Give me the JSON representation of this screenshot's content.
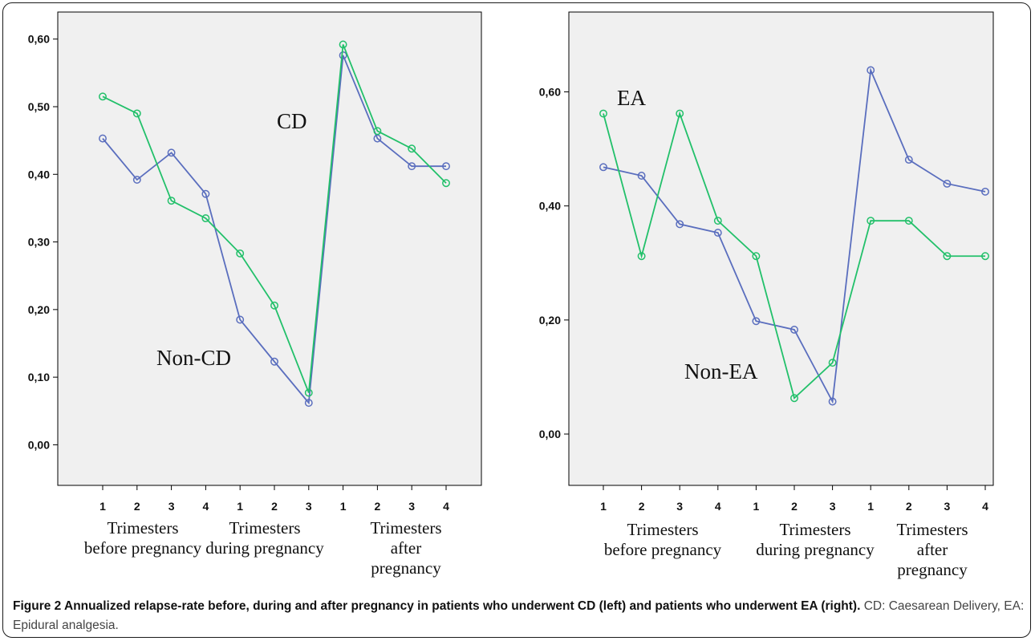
{
  "chart_data": [
    {
      "type": "line",
      "ylim": [
        -0.06,
        0.64
      ],
      "yticks": [
        0.0,
        0.1,
        0.2,
        0.3,
        0.4,
        0.5,
        0.6
      ],
      "ytick_labels": [
        "0,00",
        "0,10",
        "0,20",
        "0,30",
        "0,40",
        "0,50",
        "0,60"
      ],
      "categories": [
        "1",
        "2",
        "3",
        "4",
        "1",
        "2",
        "3",
        "1",
        "2",
        "3",
        "4"
      ],
      "x_groups": [
        {
          "lines": [
            "Trimesters",
            "before pregnancy"
          ]
        },
        {
          "lines": [
            "Trimesters",
            "during pregnancy"
          ]
        },
        {
          "lines": [
            "Trimesters",
            "after",
            "pregnancy"
          ]
        }
      ],
      "annotations": [
        {
          "text": "CD",
          "x": 5.5,
          "y": 0.49
        },
        {
          "text": "Non-CD",
          "x": 2.5,
          "y": 0.15
        }
      ],
      "series": [
        {
          "color": "#5a6ebe",
          "values": [
            0.453,
            0.392,
            0.432,
            0.371,
            0.185,
            0.123,
            0.062,
            0.576,
            0.453,
            0.412,
            0.412
          ]
        },
        {
          "color": "#22c06a",
          "values": [
            0.515,
            0.49,
            0.361,
            0.335,
            0.283,
            0.206,
            0.077,
            0.592,
            0.464,
            0.438,
            0.387
          ]
        }
      ]
    },
    {
      "type": "line",
      "ylim": [
        -0.09,
        0.74
      ],
      "yticks": [
        0.0,
        0.2,
        0.4,
        0.6
      ],
      "ytick_labels": [
        "0,00",
        "0,20",
        "0,40",
        "0,60"
      ],
      "categories": [
        "1",
        "2",
        "3",
        "4",
        "1",
        "2",
        "3",
        "1",
        "2",
        "3",
        "4"
      ],
      "x_groups": [
        {
          "lines": [
            "Trimesters",
            "before pregnancy"
          ]
        },
        {
          "lines": [
            "Trimesters",
            "during pregnancy"
          ]
        },
        {
          "lines": [
            "Trimesters",
            "after",
            "pregnancy"
          ]
        }
      ],
      "annotations": [
        {
          "text": "EA",
          "x": 5.5,
          "y": 0.6
        },
        {
          "text": "Non-EA",
          "x": 2.5,
          "y": 0.14
        }
      ],
      "series": [
        {
          "color": "#5a6ebe",
          "values": [
            0.468,
            0.453,
            0.368,
            0.353,
            0.198,
            0.183,
            0.057,
            0.638,
            0.481,
            0.439,
            0.425
          ]
        },
        {
          "color": "#22c06a",
          "values": [
            0.562,
            0.312,
            0.562,
            0.374,
            0.312,
            0.063,
            0.125,
            0.374,
            0.374,
            0.312,
            0.312
          ]
        }
      ]
    }
  ],
  "caption": {
    "bold": "Figure 2 Annualized relapse-rate before, during and after pregnancy in patients who underwent CD (left) and patients who underwent EA (right).",
    "rest": "CD: Caesarean Delivery, EA: Epidural analgesia."
  }
}
